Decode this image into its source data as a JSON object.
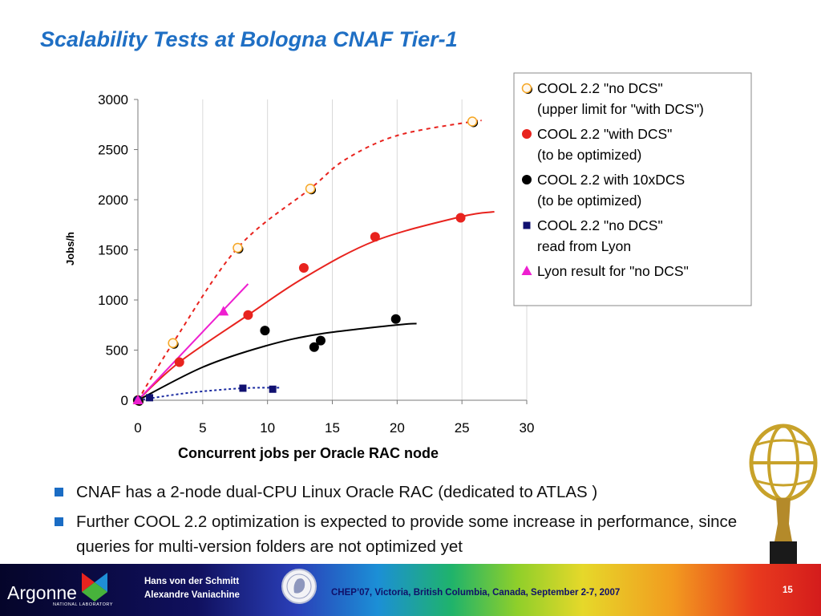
{
  "slide": {
    "title": "Scalability Tests at Bologna CNAF Tier-1"
  },
  "bullets": [
    "CNAF has a 2-node dual-CPU Linux Oracle RAC (dedicated to ATLAS )",
    "Further COOL 2.2 optimization is expected to provide some increase in performance, since queries for multi-version folders are not optimized yet"
  ],
  "footer": {
    "logo_text": "Argonne",
    "logo_sub": "NATIONAL LABORATORY",
    "author_1": "Hans von der Schmitt",
    "author_2": "Alexandre Vaniachine",
    "conference": "CHEP’07, Victoria, British Columbia, Canada, September 2-7, 2007",
    "page": "15"
  },
  "chart_data": {
    "type": "scatter",
    "xlabel": "Concurrent jobs per Oracle RAC node",
    "ylabel": "Jobs/h",
    "xlim": [
      0,
      30
    ],
    "ylim": [
      0,
      3000
    ],
    "x_ticks": [
      0,
      5,
      10,
      15,
      20,
      25,
      30
    ],
    "y_ticks": [
      0,
      500,
      1000,
      1500,
      2000,
      2500,
      3000
    ],
    "grid": "vertical",
    "legend_position": "top-right",
    "series": [
      {
        "name": "COOL 2.2 \"no DCS\"\n(upper limit for \"with DCS\")",
        "marker": "open-circle",
        "color": "#f5a623",
        "points": [
          [
            0,
            0
          ],
          [
            2.7,
            570
          ],
          [
            7.7,
            1520
          ],
          [
            13.3,
            2110
          ],
          [
            25.8,
            2780
          ]
        ],
        "trend": {
          "style": "dashed",
          "color": "#e8231e",
          "points": [
            [
              0,
              0
            ],
            [
              2.7,
              570
            ],
            [
              7.7,
              1520
            ],
            [
              13.3,
              2110
            ],
            [
              16,
              2400
            ],
            [
              20,
              2640
            ],
            [
              25.8,
              2780
            ],
            [
              26.5,
              2790
            ]
          ]
        }
      },
      {
        "name": "COOL 2.2 \"with DCS\"\n(to be optimized)",
        "marker": "circle",
        "color": "#e8231e",
        "points": [
          [
            0,
            0
          ],
          [
            3.2,
            380
          ],
          [
            8.5,
            850
          ],
          [
            12.8,
            1320
          ],
          [
            18.3,
            1630
          ],
          [
            24.9,
            1820
          ]
        ],
        "trend": {
          "style": "solid",
          "color": "#e8231e",
          "points": [
            [
              0,
              0
            ],
            [
              3.2,
              380
            ],
            [
              8.5,
              850
            ],
            [
              12.8,
              1220
            ],
            [
              18.3,
              1590
            ],
            [
              24.9,
              1830
            ],
            [
              27.5,
              1880
            ]
          ]
        }
      },
      {
        "name": "COOL 2.2 with 10xDCS\n(to be optimized)",
        "marker": "circle",
        "color": "#000000",
        "points": [
          [
            0,
            0
          ],
          [
            9.8,
            695
          ],
          [
            13.6,
            530
          ],
          [
            14.1,
            595
          ],
          [
            19.9,
            810
          ]
        ],
        "trend": {
          "style": "solid",
          "color": "#000000",
          "points": [
            [
              0,
              0
            ],
            [
              5,
              330
            ],
            [
              9.8,
              540
            ],
            [
              14,
              660
            ],
            [
              19.9,
              750
            ],
            [
              21.5,
              765
            ]
          ]
        }
      },
      {
        "name": "COOL 2.2 \"no DCS\"\nread from Lyon",
        "marker": "square",
        "color": "#101070",
        "points": [
          [
            0,
            0
          ],
          [
            0.9,
            25
          ],
          [
            8.1,
            120
          ],
          [
            10.4,
            110
          ]
        ],
        "trend": {
          "style": "dashed",
          "color": "#1a2aa0",
          "points": [
            [
              0,
              0
            ],
            [
              4,
              75
            ],
            [
              8.1,
              120
            ],
            [
              11,
              125
            ]
          ]
        }
      },
      {
        "name": "Lyon result for \"no DCS\"",
        "marker": "triangle",
        "color": "#ee1fd0",
        "points": [
          [
            0,
            0
          ],
          [
            6.6,
            885
          ]
        ],
        "trend": {
          "style": "solid",
          "color": "#ee1fd0",
          "points": [
            [
              0,
              0
            ],
            [
              8.5,
              1160
            ]
          ]
        }
      }
    ]
  }
}
